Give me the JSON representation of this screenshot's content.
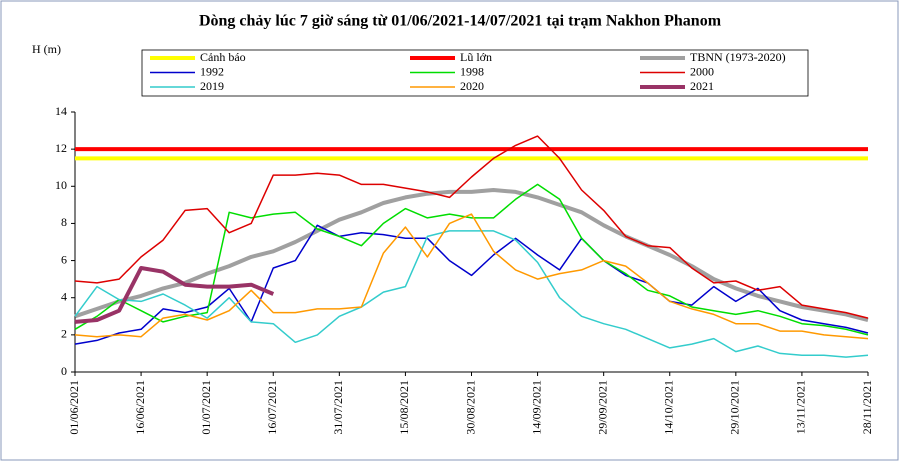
{
  "chart_data": {
    "type": "line",
    "title": "Dòng chảy lúc 7 giờ sáng từ 01/06/2021-14/07/2021 tại trạm Nakhon Phanom",
    "y_label": "H (m)",
    "x": [
      "01/06/2021",
      "06/06/2021",
      "11/06/2021",
      "16/06/2021",
      "21/06/2021",
      "26/06/2021",
      "01/07/2021",
      "06/07/2021",
      "11/07/2021",
      "16/07/2021",
      "21/07/2021",
      "26/07/2021",
      "31/07/2021",
      "05/08/2021",
      "10/08/2021",
      "15/08/2021",
      "20/08/2021",
      "25/08/2021",
      "30/08/2021",
      "04/09/2021",
      "09/09/2021",
      "14/09/2021",
      "19/09/2021",
      "24/09/2021",
      "29/09/2021",
      "04/10/2021",
      "09/10/2021",
      "14/10/2021",
      "19/10/2021",
      "24/10/2021",
      "29/10/2021",
      "03/11/2021",
      "08/11/2021",
      "13/11/2021",
      "18/11/2021",
      "23/11/2021",
      "28/11/2021"
    ],
    "xlim": [
      "01/06/2021",
      "28/11/2021"
    ],
    "xticks": [
      "01/06/2021",
      "16/06/2021",
      "01/07/2021",
      "16/07/2021",
      "31/07/2021",
      "15/08/2021",
      "30/08/2021",
      "14/09/2021",
      "29/09/2021",
      "14/10/2021",
      "29/10/2021",
      "13/11/2021",
      "28/11/2021"
    ],
    "ylim": [
      0,
      14
    ],
    "yticks": [
      0,
      2,
      4,
      6,
      8,
      10,
      12,
      14
    ],
    "series": [
      {
        "name": "Cảnh báo",
        "color": "#ffff00",
        "line_width": 4,
        "values": [
          11.5,
          11.5,
          11.5,
          11.5,
          11.5,
          11.5,
          11.5,
          11.5,
          11.5,
          11.5,
          11.5,
          11.5,
          11.5,
          11.5,
          11.5,
          11.5,
          11.5,
          11.5,
          11.5,
          11.5,
          11.5,
          11.5,
          11.5,
          11.5,
          11.5,
          11.5,
          11.5,
          11.5,
          11.5,
          11.5,
          11.5,
          11.5,
          11.5,
          11.5,
          11.5,
          11.5,
          11.5
        ]
      },
      {
        "name": "Lũ lớn",
        "color": "#ff0000",
        "line_width": 4,
        "values": [
          12,
          12,
          12,
          12,
          12,
          12,
          12,
          12,
          12,
          12,
          12,
          12,
          12,
          12,
          12,
          12,
          12,
          12,
          12,
          12,
          12,
          12,
          12,
          12,
          12,
          12,
          12,
          12,
          12,
          12,
          12,
          12,
          12,
          12,
          12,
          12,
          12
        ]
      },
      {
        "name": "TBNN (1973-2020)",
        "color": "#a0a0a0",
        "line_width": 4,
        "values": [
          3.0,
          3.4,
          3.8,
          4.1,
          4.5,
          4.8,
          5.3,
          5.7,
          6.2,
          6.5,
          7.0,
          7.6,
          8.2,
          8.6,
          9.1,
          9.4,
          9.6,
          9.7,
          9.7,
          9.8,
          9.7,
          9.4,
          9.0,
          8.6,
          7.9,
          7.3,
          6.8,
          6.3,
          5.7,
          5.0,
          4.5,
          4.1,
          3.8,
          3.5,
          3.3,
          3.1,
          2.8
        ]
      },
      {
        "name": "1992",
        "color": "#0000cc",
        "line_width": 1.5,
        "values": [
          1.5,
          1.7,
          2.1,
          2.3,
          3.4,
          3.2,
          3.5,
          4.5,
          2.7,
          5.6,
          6.0,
          7.9,
          7.3,
          7.5,
          7.4,
          7.2,
          7.2,
          6.0,
          5.2,
          6.3,
          7.2,
          6.3,
          5.5,
          7.2,
          6.0,
          5.2,
          4.8,
          3.8,
          3.6,
          4.6,
          3.8,
          4.5,
          3.3,
          2.8,
          2.6,
          2.4,
          2.1
        ]
      },
      {
        "name": "1998",
        "color": "#00dd00",
        "line_width": 1.5,
        "values": [
          2.3,
          3.0,
          3.9,
          3.3,
          2.7,
          3.0,
          3.2,
          8.6,
          8.3,
          8.5,
          8.6,
          7.7,
          7.3,
          6.8,
          8.0,
          8.8,
          8.3,
          8.5,
          8.3,
          8.3,
          9.3,
          10.1,
          9.3,
          7.2,
          6.0,
          5.3,
          4.4,
          4.1,
          3.5,
          3.3,
          3.1,
          3.3,
          3.0,
          2.6,
          2.5,
          2.3,
          2.0
        ]
      },
      {
        "name": "2000",
        "color": "#dd0000",
        "line_width": 1.5,
        "values": [
          4.9,
          4.8,
          5.0,
          6.2,
          7.1,
          8.7,
          8.8,
          7.5,
          8.0,
          10.6,
          10.6,
          10.7,
          10.6,
          10.1,
          10.1,
          9.9,
          9.7,
          9.4,
          10.5,
          11.5,
          12.2,
          12.7,
          11.5,
          9.8,
          8.7,
          7.3,
          6.8,
          6.7,
          5.6,
          4.8,
          4.9,
          4.4,
          4.6,
          3.6,
          3.4,
          3.2,
          2.9
        ]
      },
      {
        "name": "2019",
        "color": "#33cccc",
        "line_width": 1.5,
        "values": [
          3.0,
          4.6,
          3.9,
          3.8,
          4.2,
          3.6,
          2.9,
          4.0,
          2.7,
          2.6,
          1.6,
          2.0,
          3.0,
          3.5,
          4.3,
          4.6,
          7.3,
          7.6,
          7.6,
          7.6,
          7.1,
          5.9,
          4.0,
          3.0,
          2.6,
          2.3,
          1.8,
          1.3,
          1.5,
          1.8,
          1.1,
          1.4,
          1.0,
          0.9,
          0.9,
          0.8,
          0.9
        ]
      },
      {
        "name": "2020",
        "color": "#ff9900",
        "line_width": 1.5,
        "values": [
          2.0,
          1.9,
          2.0,
          1.9,
          2.9,
          3.1,
          2.8,
          3.3,
          4.4,
          3.2,
          3.2,
          3.4,
          3.4,
          3.5,
          6.4,
          7.8,
          6.2,
          8.0,
          8.5,
          6.5,
          5.5,
          5.0,
          5.3,
          5.5,
          6.0,
          5.7,
          4.8,
          3.8,
          3.4,
          3.1,
          2.6,
          2.6,
          2.2,
          2.2,
          2.0,
          1.9,
          1.8
        ]
      },
      {
        "name": "2021",
        "color": "#993366",
        "line_width": 4,
        "values": [
          2.7,
          2.8,
          3.3,
          5.6,
          5.4,
          4.7,
          4.6,
          4.6,
          4.7,
          4.2,
          null,
          null,
          null,
          null,
          null,
          null,
          null,
          null,
          null,
          null,
          null,
          null,
          null,
          null,
          null,
          null,
          null,
          null,
          null,
          null,
          null,
          null,
          null,
          null,
          null,
          null,
          null
        ]
      }
    ]
  }
}
